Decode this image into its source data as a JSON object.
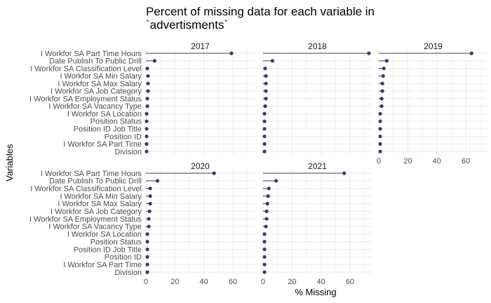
{
  "chart_data": {
    "type": "lollipop",
    "title": "Percent of missing data for each variable in `advertisments`",
    "title_lines": [
      "Percent of missing data for each variable in",
      "`advertisments`"
    ],
    "xlabel": "% Missing",
    "ylabel": "Variables",
    "xlim": [
      0,
      75
    ],
    "x_ticks": [
      0,
      20,
      40,
      60
    ],
    "grid": true,
    "legend": "none",
    "colors": {
      "point": "#3b3b68",
      "segment": "#3b3b68",
      "grid": "#ebebeb"
    },
    "variables": [
      "I Workfor SA Part Time Hours",
      "Date Publish To Public Drill",
      "I Workfor SA Classification Level",
      "I Workfor SA Min Salary",
      "I Workfor SA Max Salary",
      "I Workfor SA Job Category",
      "I Workfor SA Employment Status",
      "I Workfor SA Vacancy Type",
      "I Workfor SA Location",
      "Position Status",
      "Position ID Job Title",
      "Position ID",
      "I Workfor SA Part Time",
      "Division"
    ],
    "panels": [
      {
        "label": "2017",
        "values": [
          59,
          6,
          1,
          1.5,
          1.5,
          1.5,
          1,
          1,
          0.5,
          0.5,
          0.5,
          0.5,
          0.5,
          0.5
        ]
      },
      {
        "label": "2018",
        "values": [
          73,
          6.5,
          1.5,
          2,
          2,
          2,
          2,
          1.5,
          1,
          1,
          1,
          1,
          1,
          1
        ]
      },
      {
        "label": "2019",
        "values": [
          64,
          5.5,
          3.5,
          3,
          2.5,
          2.5,
          2,
          2,
          1,
          1,
          1,
          1,
          1,
          1
        ]
      },
      {
        "label": "2020",
        "values": [
          47,
          8,
          3,
          3,
          3,
          2.5,
          2,
          2,
          1,
          1,
          1,
          1,
          1,
          1
        ]
      },
      {
        "label": "2021",
        "values": [
          56,
          9,
          4,
          3.5,
          3,
          2.5,
          2.5,
          2,
          1,
          1,
          1,
          1,
          1,
          1
        ]
      }
    ]
  }
}
